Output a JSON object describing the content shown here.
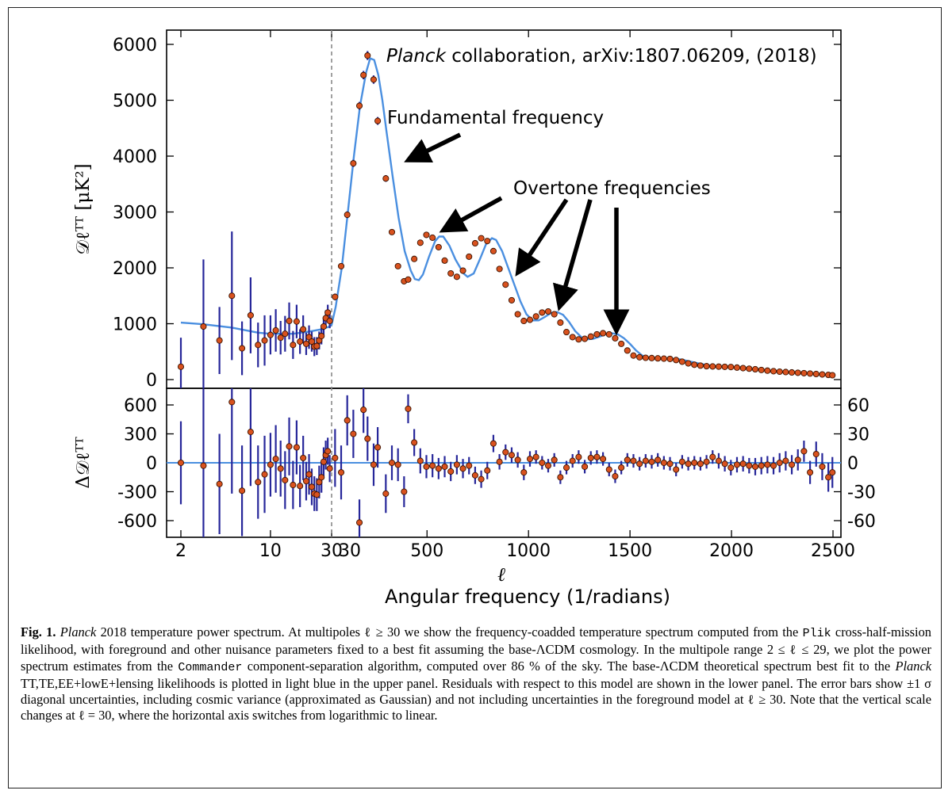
{
  "chart_data": {
    "type": "scatter",
    "annotations": {
      "credit_italic": "Planck",
      "credit_rest": " collaboration, arXiv:1807.06209, (2018)",
      "fundamental": "Fundamental frequency",
      "overtone": "Overtone frequencies"
    },
    "xlabel_symbol": "ℓ",
    "xlabel": "Angular frequency (1/radians)",
    "ylabel_upper": "𝒟ℓᵀᵀ [μK²]",
    "ylabel_lower": "Δ𝒟ℓᵀᵀ",
    "x_scale": "log for 2 ≤ ℓ < 30, linear for 30 ≤ ℓ ≤ 2500",
    "x_ticks": [
      {
        "v": 2,
        "label": "2"
      },
      {
        "v": 10,
        "label": "10"
      },
      {
        "v": 30,
        "label": "30"
      },
      {
        "v": 500,
        "label": "500"
      },
      {
        "v": 1000,
        "label": "1000"
      },
      {
        "v": 1500,
        "label": "1500"
      },
      {
        "v": 2000,
        "label": "2000"
      },
      {
        "v": 2500,
        "label": "2500"
      }
    ],
    "x_ticks_extra_linear": [
      {
        "v": 30,
        "label": "30"
      }
    ],
    "upper": {
      "ylim": [
        0,
        6200
      ],
      "y_ticks": [
        0,
        1000,
        2000,
        3000,
        4000,
        5000,
        6000
      ],
      "y_tick_labels": [
        "0",
        "1000",
        "2000",
        "3000",
        "4000",
        "5000",
        "6000"
      ]
    },
    "lower": {
      "ylim_left": [
        -700,
        700
      ],
      "y_ticks_left": [
        -600,
        -300,
        0,
        300,
        600
      ],
      "y_tick_labels_left": [
        "-600",
        "-300",
        "0",
        "300",
        "600"
      ],
      "ylim_right": [
        -70,
        70
      ],
      "y_ticks_right": [
        -60,
        -30,
        0,
        30,
        60
      ],
      "y_tick_labels_right": [
        "-60",
        "-30",
        "0",
        "30",
        "60"
      ]
    },
    "model_curve": [
      [
        2,
        1020
      ],
      [
        3,
        990
      ],
      [
        5,
        930
      ],
      [
        8,
        840
      ],
      [
        10,
        820
      ],
      [
        15,
        820
      ],
      [
        20,
        860
      ],
      [
        25,
        900
      ],
      [
        29,
        950
      ],
      [
        30,
        980
      ],
      [
        50,
        1300
      ],
      [
        80,
        2000
      ],
      [
        110,
        3000
      ],
      [
        140,
        4000
      ],
      [
        170,
        4900
      ],
      [
        200,
        5500
      ],
      [
        220,
        5750
      ],
      [
        240,
        5720
      ],
      [
        260,
        5450
      ],
      [
        280,
        5000
      ],
      [
        300,
        4450
      ],
      [
        330,
        3650
      ],
      [
        360,
        2900
      ],
      [
        390,
        2300
      ],
      [
        420,
        1950
      ],
      [
        440,
        1800
      ],
      [
        460,
        1780
      ],
      [
        480,
        1880
      ],
      [
        510,
        2200
      ],
      [
        540,
        2480
      ],
      [
        560,
        2560
      ],
      [
        580,
        2560
      ],
      [
        610,
        2400
      ],
      [
        640,
        2150
      ],
      [
        680,
        1900
      ],
      [
        700,
        1840
      ],
      [
        730,
        1900
      ],
      [
        760,
        2150
      ],
      [
        790,
        2420
      ],
      [
        820,
        2530
      ],
      [
        840,
        2500
      ],
      [
        870,
        2300
      ],
      [
        900,
        2000
      ],
      [
        930,
        1700
      ],
      [
        960,
        1400
      ],
      [
        990,
        1170
      ],
      [
        1020,
        1060
      ],
      [
        1050,
        1060
      ],
      [
        1080,
        1120
      ],
      [
        1110,
        1190
      ],
      [
        1140,
        1210
      ],
      [
        1170,
        1160
      ],
      [
        1200,
        1030
      ],
      [
        1230,
        870
      ],
      [
        1260,
        760
      ],
      [
        1290,
        720
      ],
      [
        1320,
        730
      ],
      [
        1350,
        770
      ],
      [
        1380,
        810
      ],
      [
        1410,
        830
      ],
      [
        1440,
        810
      ],
      [
        1470,
        740
      ],
      [
        1500,
        640
      ],
      [
        1530,
        520
      ],
      [
        1560,
        430
      ],
      [
        1600,
        390
      ],
      [
        1650,
        380
      ],
      [
        1700,
        375
      ],
      [
        1750,
        360
      ],
      [
        1800,
        320
      ],
      [
        1850,
        280
      ],
      [
        1900,
        250
      ],
      [
        1950,
        230
      ],
      [
        2000,
        225
      ],
      [
        2050,
        215
      ],
      [
        2100,
        195
      ],
      [
        2150,
        175
      ],
      [
        2200,
        150
      ],
      [
        2250,
        135
      ],
      [
        2300,
        125
      ],
      [
        2350,
        115
      ],
      [
        2400,
        105
      ],
      [
        2450,
        90
      ],
      [
        2500,
        75
      ]
    ],
    "lowl_points": [
      {
        "l": 2,
        "d": 230,
        "e": 520,
        "r": 0,
        "re": 430
      },
      {
        "l": 3,
        "d": 950,
        "e": 1200,
        "r": -30,
        "re": 800
      },
      {
        "l": 4,
        "d": 700,
        "e": 600,
        "r": -220,
        "re": 520
      },
      {
        "l": 5,
        "d": 1500,
        "e": 1150,
        "r": 630,
        "re": 950
      },
      {
        "l": 6,
        "d": 560,
        "e": 480,
        "r": -290,
        "re": 470
      },
      {
        "l": 7,
        "d": 1150,
        "e": 680,
        "r": 320,
        "re": 560
      },
      {
        "l": 8,
        "d": 620,
        "e": 400,
        "r": -200,
        "re": 380
      },
      {
        "l": 9,
        "d": 700,
        "e": 450,
        "r": -120,
        "re": 400
      },
      {
        "l": 10,
        "d": 800,
        "e": 350,
        "r": -20,
        "re": 330
      },
      {
        "l": 11,
        "d": 880,
        "e": 380,
        "r": 40,
        "re": 350
      },
      {
        "l": 12,
        "d": 750,
        "e": 300,
        "r": -60,
        "re": 290
      },
      {
        "l": 13,
        "d": 820,
        "e": 320,
        "r": -180,
        "re": 300
      },
      {
        "l": 14,
        "d": 1050,
        "e": 330,
        "r": 170,
        "re": 300
      },
      {
        "l": 15,
        "d": 620,
        "e": 250,
        "r": -230,
        "re": 250
      },
      {
        "l": 16,
        "d": 1040,
        "e": 300,
        "r": 160,
        "re": 280
      },
      {
        "l": 17,
        "d": 680,
        "e": 220,
        "r": -240,
        "re": 220
      },
      {
        "l": 18,
        "d": 900,
        "e": 250,
        "r": 50,
        "re": 230
      },
      {
        "l": 19,
        "d": 640,
        "e": 200,
        "r": -190,
        "re": 200
      },
      {
        "l": 20,
        "d": 760,
        "e": 210,
        "r": -120,
        "re": 210
      },
      {
        "l": 21,
        "d": 680,
        "e": 180,
        "r": -250,
        "re": 190
      },
      {
        "l": 22,
        "d": 590,
        "e": 170,
        "r": -320,
        "re": 180
      },
      {
        "l": 23,
        "d": 600,
        "e": 160,
        "r": -330,
        "re": 170
      },
      {
        "l": 24,
        "d": 700,
        "e": 160,
        "r": -200,
        "re": 170
      },
      {
        "l": 25,
        "d": 780,
        "e": 150,
        "r": -150,
        "re": 160
      },
      {
        "l": 26,
        "d": 950,
        "e": 150,
        "r": 10,
        "re": 150
      },
      {
        "l": 27,
        "d": 1100,
        "e": 140,
        "r": 80,
        "re": 150
      },
      {
        "l": 28,
        "d": 1200,
        "e": 140,
        "r": 120,
        "re": 140
      },
      {
        "l": 29,
        "d": 1050,
        "e": 130,
        "r": -60,
        "re": 140
      }
    ],
    "highl_points": [
      {
        "l": 47,
        "d": 1480,
        "e": 60,
        "r": 5,
        "re": 30
      },
      {
        "l": 77,
        "d": 2030,
        "e": 55,
        "r": -10,
        "re": 28
      },
      {
        "l": 107,
        "d": 2950,
        "e": 60,
        "r": 44,
        "re": 26
      },
      {
        "l": 137,
        "d": 3870,
        "e": 65,
        "r": 30,
        "re": 25
      },
      {
        "l": 167,
        "d": 4900,
        "e": 70,
        "r": -62,
        "re": 24
      },
      {
        "l": 187,
        "d": 5450,
        "e": 75,
        "r": 55,
        "re": 24
      },
      {
        "l": 207,
        "d": 5800,
        "e": 80,
        "r": 25,
        "re": 23
      },
      {
        "l": 237,
        "d": 5370,
        "e": 75,
        "r": -2,
        "re": 22
      },
      {
        "l": 257,
        "d": 4630,
        "e": 70,
        "r": 16,
        "re": 21
      },
      {
        "l": 297,
        "d": 3600,
        "e": 60,
        "r": -32,
        "re": 20
      },
      {
        "l": 327,
        "d": 2640,
        "e": 50,
        "r": 0,
        "re": 18
      },
      {
        "l": 357,
        "d": 2030,
        "e": 45,
        "r": -2,
        "re": 17
      },
      {
        "l": 387,
        "d": 1760,
        "e": 40,
        "r": -30,
        "re": 16
      },
      {
        "l": 407,
        "d": 1790,
        "e": 38,
        "r": 56,
        "re": 15
      },
      {
        "l": 437,
        "d": 2160,
        "e": 40,
        "r": 21,
        "re": 14
      },
      {
        "l": 467,
        "d": 2450,
        "e": 42,
        "r": 2,
        "re": 13
      },
      {
        "l": 497,
        "d": 2590,
        "e": 42,
        "r": -4,
        "re": 12
      },
      {
        "l": 527,
        "d": 2540,
        "e": 40,
        "r": -3,
        "re": 12
      },
      {
        "l": 557,
        "d": 2370,
        "e": 38,
        "r": -6,
        "re": 11
      },
      {
        "l": 587,
        "d": 2130,
        "e": 35,
        "r": -4,
        "re": 11
      },
      {
        "l": 617,
        "d": 1900,
        "e": 32,
        "r": -9,
        "re": 10
      },
      {
        "l": 647,
        "d": 1840,
        "e": 30,
        "r": -2,
        "re": 10
      },
      {
        "l": 677,
        "d": 1950,
        "e": 30,
        "r": -6,
        "re": 10
      },
      {
        "l": 707,
        "d": 2200,
        "e": 32,
        "r": -3,
        "re": 9
      },
      {
        "l": 737,
        "d": 2440,
        "e": 34,
        "r": -13,
        "re": 9
      },
      {
        "l": 767,
        "d": 2530,
        "e": 35,
        "r": -17,
        "re": 9
      },
      {
        "l": 797,
        "d": 2480,
        "e": 34,
        "r": -8,
        "re": 9
      },
      {
        "l": 827,
        "d": 2300,
        "e": 32,
        "r": 20,
        "re": 9
      },
      {
        "l": 857,
        "d": 1980,
        "e": 30,
        "r": 1,
        "re": 8
      },
      {
        "l": 887,
        "d": 1700,
        "e": 28,
        "r": 11,
        "re": 8
      },
      {
        "l": 917,
        "d": 1420,
        "e": 26,
        "r": 8,
        "re": 8
      },
      {
        "l": 947,
        "d": 1170,
        "e": 24,
        "r": 3,
        "re": 8
      },
      {
        "l": 977,
        "d": 1050,
        "e": 22,
        "r": -10,
        "re": 8
      },
      {
        "l": 1007,
        "d": 1070,
        "e": 22,
        "r": 4,
        "re": 8
      },
      {
        "l": 1037,
        "d": 1130,
        "e": 22,
        "r": 6,
        "re": 7
      },
      {
        "l": 1067,
        "d": 1200,
        "e": 22,
        "r": 0,
        "re": 7
      },
      {
        "l": 1097,
        "d": 1220,
        "e": 22,
        "r": -3,
        "re": 7
      },
      {
        "l": 1127,
        "d": 1170,
        "e": 22,
        "r": 3,
        "re": 7
      },
      {
        "l": 1157,
        "d": 1020,
        "e": 20,
        "r": -15,
        "re": 7
      },
      {
        "l": 1187,
        "d": 850,
        "e": 18,
        "r": -5,
        "re": 7
      },
      {
        "l": 1217,
        "d": 760,
        "e": 17,
        "r": 2,
        "re": 7
      },
      {
        "l": 1247,
        "d": 720,
        "e": 16,
        "r": 6,
        "re": 7
      },
      {
        "l": 1277,
        "d": 730,
        "e": 16,
        "r": -4,
        "re": 7
      },
      {
        "l": 1307,
        "d": 770,
        "e": 16,
        "r": 5,
        "re": 7
      },
      {
        "l": 1337,
        "d": 810,
        "e": 17,
        "r": 6,
        "re": 7
      },
      {
        "l": 1367,
        "d": 830,
        "e": 17,
        "r": 4,
        "re": 7
      },
      {
        "l": 1397,
        "d": 810,
        "e": 17,
        "r": -7,
        "re": 7
      },
      {
        "l": 1427,
        "d": 740,
        "e": 16,
        "r": -14,
        "re": 7
      },
      {
        "l": 1457,
        "d": 640,
        "e": 15,
        "r": -5,
        "re": 7
      },
      {
        "l": 1487,
        "d": 520,
        "e": 14,
        "r": 3,
        "re": 7
      },
      {
        "l": 1517,
        "d": 430,
        "e": 13,
        "r": 2,
        "re": 7
      },
      {
        "l": 1547,
        "d": 400,
        "e": 12,
        "r": -1,
        "re": 7
      },
      {
        "l": 1577,
        "d": 390,
        "e": 12,
        "r": 2,
        "re": 7
      },
      {
        "l": 1607,
        "d": 385,
        "e": 12,
        "r": 1,
        "re": 7
      },
      {
        "l": 1637,
        "d": 380,
        "e": 12,
        "r": 3,
        "re": 7
      },
      {
        "l": 1667,
        "d": 375,
        "e": 12,
        "r": 0,
        "re": 7
      },
      {
        "l": 1697,
        "d": 370,
        "e": 12,
        "r": -1,
        "re": 7
      },
      {
        "l": 1727,
        "d": 350,
        "e": 12,
        "r": -7,
        "re": 7
      },
      {
        "l": 1757,
        "d": 320,
        "e": 11,
        "r": 1,
        "re": 7
      },
      {
        "l": 1787,
        "d": 290,
        "e": 11,
        "r": -1,
        "re": 7
      },
      {
        "l": 1817,
        "d": 265,
        "e": 10,
        "r": 0,
        "re": 7
      },
      {
        "l": 1847,
        "d": 250,
        "e": 10,
        "r": -1,
        "re": 7
      },
      {
        "l": 1877,
        "d": 240,
        "e": 10,
        "r": 1,
        "re": 7
      },
      {
        "l": 1907,
        "d": 235,
        "e": 10,
        "r": 6,
        "re": 7
      },
      {
        "l": 1937,
        "d": 232,
        "e": 10,
        "r": 2,
        "re": 8
      },
      {
        "l": 1967,
        "d": 228,
        "e": 10,
        "r": -1,
        "re": 8
      },
      {
        "l": 1997,
        "d": 225,
        "e": 10,
        "r": -5,
        "re": 8
      },
      {
        "l": 2027,
        "d": 215,
        "e": 10,
        "r": -2,
        "re": 8
      },
      {
        "l": 2057,
        "d": 205,
        "e": 10,
        "r": -1,
        "re": 8
      },
      {
        "l": 2087,
        "d": 195,
        "e": 10,
        "r": -3,
        "re": 8
      },
      {
        "l": 2117,
        "d": 185,
        "e": 10,
        "r": -4,
        "re": 9
      },
      {
        "l": 2147,
        "d": 172,
        "e": 10,
        "r": -3,
        "re": 9
      },
      {
        "l": 2177,
        "d": 160,
        "e": 10,
        "r": -2,
        "re": 9
      },
      {
        "l": 2207,
        "d": 150,
        "e": 10,
        "r": -3,
        "re": 9
      },
      {
        "l": 2237,
        "d": 142,
        "e": 10,
        "r": 0,
        "re": 10
      },
      {
        "l": 2267,
        "d": 135,
        "e": 10,
        "r": 2,
        "re": 10
      },
      {
        "l": 2297,
        "d": 128,
        "e": 10,
        "r": -2,
        "re": 10
      },
      {
        "l": 2327,
        "d": 122,
        "e": 10,
        "r": 3,
        "re": 11
      },
      {
        "l": 2357,
        "d": 115,
        "e": 10,
        "r": 12,
        "re": 11
      },
      {
        "l": 2387,
        "d": 108,
        "e": 10,
        "r": -10,
        "re": 12
      },
      {
        "l": 2417,
        "d": 100,
        "e": 10,
        "r": 9,
        "re": 13
      },
      {
        "l": 2447,
        "d": 92,
        "e": 10,
        "r": -4,
        "re": 14
      },
      {
        "l": 2477,
        "d": 84,
        "e": 10,
        "r": -15,
        "re": 15
      },
      {
        "l": 2497,
        "d": 78,
        "e": 10,
        "r": -10,
        "re": 16
      }
    ]
  },
  "caption": {
    "label": "Fig. 1.",
    "s1": " ",
    "planck1": "Planck",
    "t1": " 2018 temperature power spectrum. At multipoles ℓ ≥ 30 we show the frequency-coadded temperature spectrum computed from the ",
    "code1": "Plik",
    "t2": " cross-half-mission likelihood, with foreground and other nuisance parameters fixed to a best fit assuming the base-ΛCDM cosmology. In the multipole range 2 ≤ ℓ ≤ 29, we plot the power spectrum estimates from the ",
    "code2": "Commander",
    "t3": " component-separation algorithm, computed over 86 % of the sky. The base-ΛCDM theoretical spectrum best fit to the ",
    "planck2": "Planck",
    "t4": " TT,TE,EE+lowE+lensing likelihoods is plotted in light blue in the upper panel. Residuals with respect to this model are shown in the lower panel. The error bars show ±1 σ diagonal uncertainties, including cosmic variance (approximated as Gaussian) and not including uncertainties in the foreground model at ℓ ≥ 30. Note that the vertical scale changes at ℓ = 30, where the horizontal axis switches from logarithmic to linear."
  },
  "colors": {
    "model": "#4a8fe0",
    "point_fill": "#d9521e",
    "errbar": "#27279a",
    "dashed": "#888888"
  }
}
